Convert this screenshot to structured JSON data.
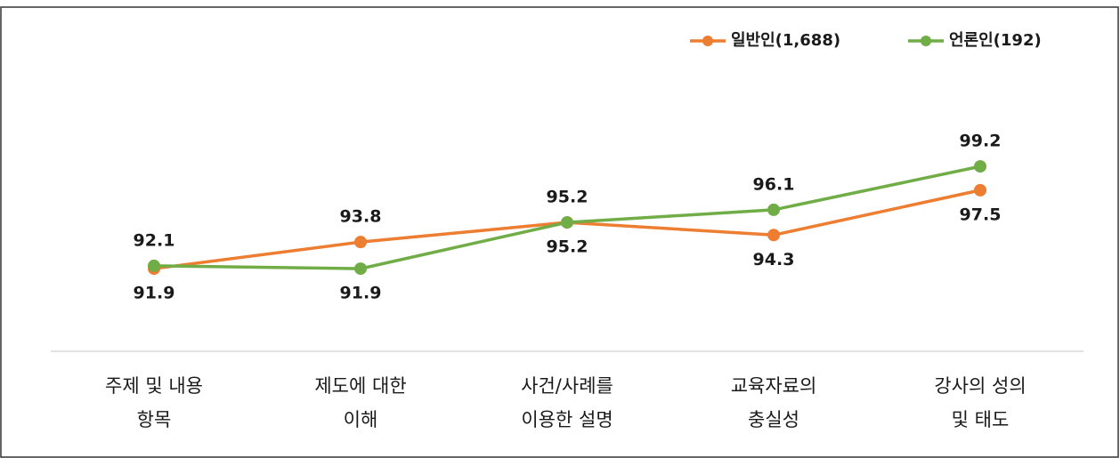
{
  "chart_data": {
    "type": "line",
    "categories": [
      [
        "주제 및 내용",
        "항목"
      ],
      [
        "제도에 대한",
        "이해"
      ],
      [
        "사건/사례를",
        "이용한 설명"
      ],
      [
        "교육자료의",
        "충실성"
      ],
      [
        "강사의 성의",
        "및 태도"
      ]
    ],
    "series": [
      {
        "name": "일반인(1,688)",
        "color": "#ed7d31",
        "values": [
          91.9,
          93.8,
          95.2,
          94.3,
          97.5
        ]
      },
      {
        "name": "언론인(192)",
        "color": "#70ad47",
        "values": [
          92.1,
          91.9,
          95.2,
          96.1,
          99.2
        ]
      }
    ],
    "ylim": [
      86,
      110
    ],
    "legend": "top-right"
  }
}
